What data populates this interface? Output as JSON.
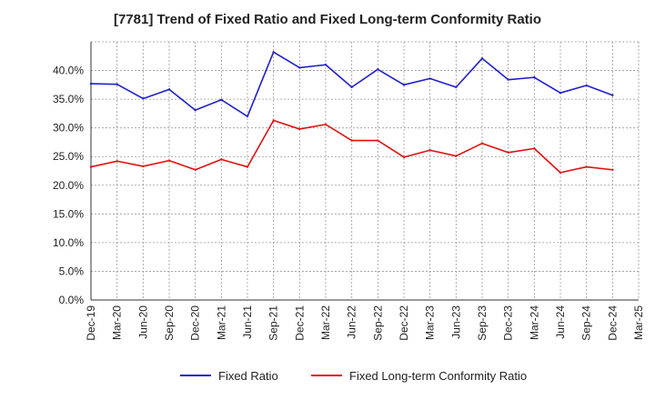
{
  "chart_data": {
    "type": "line",
    "title": "[7781]  Trend of Fixed Ratio and Fixed Long-term Conformity Ratio",
    "xlabel": "",
    "ylabel": "",
    "x_ticks": [
      "Dec-19",
      "Mar-20",
      "Jun-20",
      "Sep-20",
      "Dec-20",
      "Mar-21",
      "Jun-21",
      "Sep-21",
      "Dec-21",
      "Mar-22",
      "Jun-22",
      "Sep-22",
      "Dec-22",
      "Mar-23",
      "Jun-23",
      "Sep-23",
      "Dec-23",
      "Mar-24",
      "Jun-24",
      "Sep-24",
      "Dec-24",
      "Mar-25"
    ],
    "y_ticks": [
      "0.0%",
      "5.0%",
      "10.0%",
      "15.0%",
      "20.0%",
      "25.0%",
      "30.0%",
      "35.0%",
      "40.0%"
    ],
    "ylim": [
      0,
      45
    ],
    "grid": true,
    "legend_position": "bottom",
    "series": [
      {
        "name": "Fixed Ratio",
        "color": "#1f1fcc",
        "x": [
          "Dec-19",
          "Mar-20",
          "Jun-20",
          "Sep-20",
          "Dec-20",
          "Mar-21",
          "Jun-21",
          "Sep-21",
          "Dec-21",
          "Mar-22",
          "Jun-22",
          "Sep-22",
          "Dec-22",
          "Mar-23",
          "Jun-23",
          "Sep-23",
          "Dec-23",
          "Mar-24",
          "Jun-24",
          "Sep-24",
          "Dec-24"
        ],
        "values": [
          37.7,
          37.6,
          35.1,
          36.7,
          33.1,
          34.9,
          32.0,
          43.2,
          40.5,
          41.0,
          37.1,
          40.2,
          37.5,
          38.6,
          37.1,
          42.1,
          38.4,
          38.8,
          36.1,
          37.4,
          35.7
        ]
      },
      {
        "name": "Fixed Long-term Conformity Ratio",
        "color": "#e01010",
        "x": [
          "Dec-19",
          "Mar-20",
          "Jun-20",
          "Sep-20",
          "Dec-20",
          "Mar-21",
          "Jun-21",
          "Sep-21",
          "Dec-21",
          "Mar-22",
          "Jun-22",
          "Sep-22",
          "Dec-22",
          "Mar-23",
          "Jun-23",
          "Sep-23",
          "Dec-23",
          "Mar-24",
          "Jun-24",
          "Sep-24",
          "Dec-24"
        ],
        "values": [
          23.2,
          24.2,
          23.3,
          24.3,
          22.7,
          24.5,
          23.2,
          31.3,
          29.8,
          30.6,
          27.8,
          27.8,
          24.9,
          26.1,
          25.1,
          27.3,
          25.7,
          26.4,
          22.2,
          23.2,
          22.7
        ]
      }
    ]
  }
}
